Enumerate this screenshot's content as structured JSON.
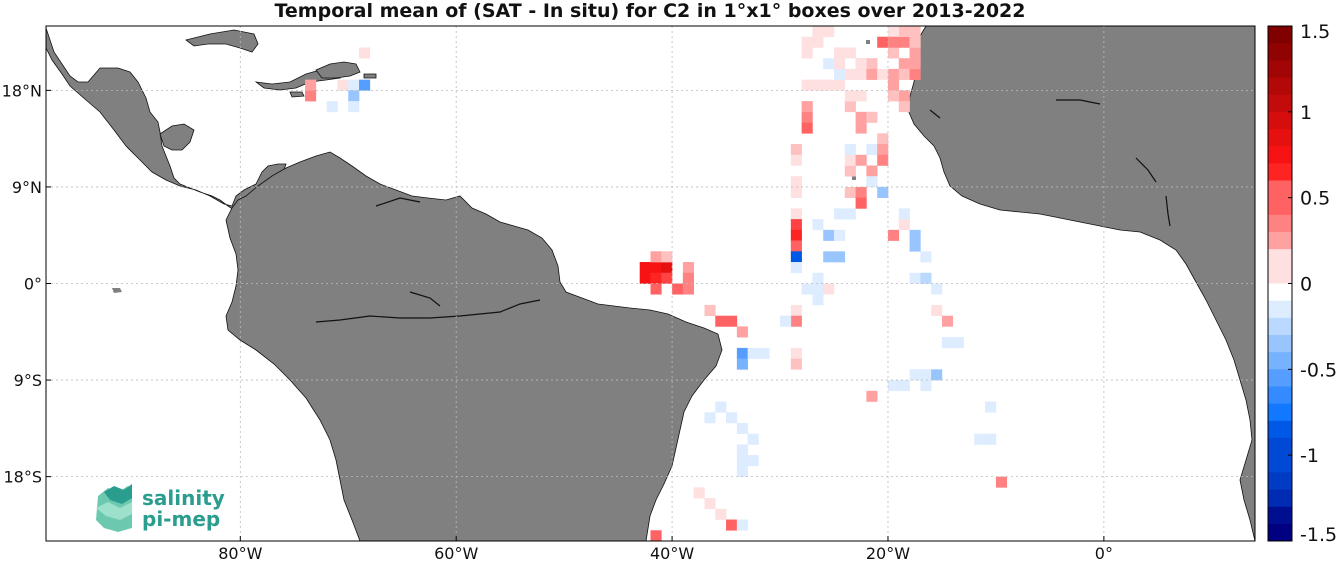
{
  "title": "Temporal mean of (SAT - In situ) for C2 in 1°x1° boxes over 2013-2022",
  "map": {
    "lon_range": [
      -98,
      14
    ],
    "lat_range": [
      -24,
      24
    ],
    "lon_ticks": [
      {
        "value": -80,
        "label": "80°W"
      },
      {
        "value": -60,
        "label": "60°W"
      },
      {
        "value": -40,
        "label": "40°W"
      },
      {
        "value": -20,
        "label": "20°W"
      },
      {
        "value": 0,
        "label": "0°"
      }
    ],
    "lat_ticks": [
      {
        "value": 18,
        "label": "18°N"
      },
      {
        "value": 9,
        "label": "9°N"
      },
      {
        "value": 0,
        "label": "0°"
      },
      {
        "value": -9,
        "label": "9°S"
      },
      {
        "value": -18,
        "label": "18°S"
      }
    ],
    "grid": true,
    "land_color": "#808080",
    "ocean_color": "#ffffff"
  },
  "colorbar": {
    "range": [
      -1.5,
      1.5
    ],
    "ticks": [
      {
        "value": 1.5,
        "label": "1.5"
      },
      {
        "value": 1,
        "label": "1"
      },
      {
        "value": 0.5,
        "label": "0.5"
      },
      {
        "value": 0,
        "label": "0"
      },
      {
        "value": -0.5,
        "label": "-0.5"
      },
      {
        "value": -1,
        "label": "-1"
      },
      {
        "value": -1.5,
        "label": "-1.5"
      }
    ],
    "placement": "right"
  },
  "logo": {
    "line1": "salinity",
    "line2": "pi-mep"
  },
  "chart_data": {
    "type": "heatmap",
    "cell_size_deg": 1,
    "value_range": [
      -1.5,
      1.5
    ],
    "cells": [
      [
        -74,
        18,
        0.25
      ],
      [
        -74,
        17,
        0.35
      ],
      [
        -71,
        18,
        0.1
      ],
      [
        -70,
        18,
        -0.15
      ],
      [
        -69,
        18,
        -0.5
      ],
      [
        -70,
        17,
        -0.35
      ],
      [
        -72,
        16,
        -0.1
      ],
      [
        -70,
        16,
        -0.1
      ],
      [
        -69,
        21,
        0.1
      ],
      [
        -43,
        1,
        0.8
      ],
      [
        -42,
        1,
        0.8
      ],
      [
        -41,
        1,
        0.9
      ],
      [
        -43,
        0,
        0.75
      ],
      [
        -42,
        0,
        0.7
      ],
      [
        -41,
        0,
        0.6
      ],
      [
        -42,
        -1,
        0.5
      ],
      [
        -40,
        -1,
        0.45
      ],
      [
        -42,
        2,
        0.25
      ],
      [
        -41,
        2,
        0.2
      ],
      [
        -39,
        1,
        0.3
      ],
      [
        -39,
        0,
        0.35
      ],
      [
        -39,
        -1,
        0.4
      ],
      [
        -37,
        -3,
        0.2
      ],
      [
        -36,
        -4,
        0.5
      ],
      [
        -35,
        -4,
        0.55
      ],
      [
        -34,
        -5,
        0.3
      ],
      [
        -34,
        -7,
        -0.5
      ],
      [
        -34,
        -8,
        -0.45
      ],
      [
        -33,
        -7,
        -0.15
      ],
      [
        -32,
        -7,
        -0.1
      ],
      [
        -36,
        -12,
        -0.15
      ],
      [
        -37,
        -13,
        -0.1
      ],
      [
        -35,
        -13,
        -0.1
      ],
      [
        -34,
        -14,
        -0.1
      ],
      [
        -33,
        -15,
        -0.15
      ],
      [
        -34,
        -16,
        -0.1
      ],
      [
        -33,
        -17,
        -0.15
      ],
      [
        -34,
        -17,
        -0.1
      ],
      [
        -34,
        -18,
        -0.1
      ],
      [
        -38,
        -20,
        0.1
      ],
      [
        -37,
        -21,
        0.1
      ],
      [
        -36,
        -22,
        0.1
      ],
      [
        -35,
        -23,
        0.45
      ],
      [
        -34,
        -23,
        -0.1
      ],
      [
        -42,
        -24,
        0.5
      ],
      [
        -29,
        12,
        0.2
      ],
      [
        -29,
        11,
        0.15
      ],
      [
        -29,
        9,
        0.15
      ],
      [
        -29,
        8,
        0.15
      ],
      [
        -29,
        6,
        0.1
      ],
      [
        -29,
        5,
        0.6
      ],
      [
        -29,
        4,
        0.65
      ],
      [
        -29,
        3,
        0.5
      ],
      [
        -29,
        2,
        -0.9
      ],
      [
        -29,
        1,
        -0.1
      ],
      [
        -29,
        -3,
        0.15
      ],
      [
        -29,
        -4,
        0.35
      ],
      [
        -30,
        -4,
        -0.15
      ],
      [
        -29,
        -7,
        0.15
      ],
      [
        -29,
        -8,
        0.2
      ],
      [
        -28,
        15,
        0.4
      ],
      [
        -28,
        14,
        0.55
      ],
      [
        -28,
        16,
        0.25
      ],
      [
        -28,
        18,
        0.1
      ],
      [
        -26,
        4,
        -0.3
      ],
      [
        -27,
        5,
        -0.1
      ],
      [
        -25,
        4,
        -0.15
      ],
      [
        -27,
        0,
        -0.1
      ],
      [
        -28,
        -1,
        -0.15
      ],
      [
        -27,
        -1,
        -0.1
      ],
      [
        -27,
        -2,
        -0.15
      ],
      [
        -26,
        -1,
        0.1
      ],
      [
        -26,
        2,
        -0.3
      ],
      [
        -25,
        2,
        -0.3
      ],
      [
        -25,
        6,
        -0.1
      ],
      [
        -24,
        6,
        -0.1
      ],
      [
        -24,
        8,
        0.2
      ],
      [
        -23,
        8,
        0.4
      ],
      [
        -23,
        7,
        0.5
      ],
      [
        -24,
        10,
        0.2
      ],
      [
        -24,
        11,
        0.15
      ],
      [
        -23,
        11,
        0.25
      ],
      [
        -22,
        10,
        0.25
      ],
      [
        -24,
        12,
        -0.15
      ],
      [
        -22,
        12,
        -0.15
      ],
      [
        -21,
        13,
        0.2
      ],
      [
        -21,
        12,
        0.3
      ],
      [
        -21,
        11,
        0.35
      ],
      [
        -22,
        9,
        -0.1
      ],
      [
        -21,
        8,
        -0.35
      ],
      [
        -20,
        4,
        0.35
      ],
      [
        -19,
        5,
        0.15
      ],
      [
        -19,
        6,
        -0.15
      ],
      [
        -18,
        4,
        -0.35
      ],
      [
        -18,
        3,
        -0.3
      ],
      [
        -17,
        2,
        -0.15
      ],
      [
        -18,
        0,
        -0.15
      ],
      [
        -17,
        0,
        -0.2
      ],
      [
        -16,
        -1,
        -0.15
      ],
      [
        -16,
        -3,
        0.1
      ],
      [
        -15,
        -4,
        0.25
      ],
      [
        -15,
        -6,
        -0.15
      ],
      [
        -14,
        -6,
        -0.15
      ],
      [
        -18,
        -9,
        -0.1
      ],
      [
        -19,
        -10,
        -0.1
      ],
      [
        -20,
        -10,
        -0.15
      ],
      [
        -17,
        -9,
        -0.15
      ],
      [
        -16,
        -9,
        -0.35
      ],
      [
        -17,
        -10,
        -0.1
      ],
      [
        -22,
        -11,
        0.25
      ],
      [
        -11,
        -12,
        -0.1
      ],
      [
        -12,
        -15,
        -0.15
      ],
      [
        -11,
        -15,
        -0.15
      ],
      [
        -10,
        -19,
        0.4
      ],
      [
        -24,
        16,
        0.2
      ],
      [
        -24,
        17,
        0.1
      ],
      [
        -23,
        17,
        0.1
      ],
      [
        -25,
        18,
        0.1
      ],
      [
        -26,
        18,
        0.1
      ],
      [
        -27,
        18,
        0.1
      ],
      [
        -24,
        19,
        0.15
      ],
      [
        -25,
        19,
        -0.1
      ],
      [
        -23,
        19,
        0.1
      ],
      [
        -23,
        15,
        0.3
      ],
      [
        -23,
        14,
        0.25
      ],
      [
        -23,
        20,
        0.2
      ],
      [
        -22,
        20,
        0.2
      ],
      [
        -22,
        19,
        0.25
      ],
      [
        -20,
        21,
        0.2
      ],
      [
        -19,
        22,
        0.35
      ],
      [
        -19,
        20,
        0.3
      ],
      [
        -20,
        19,
        0.25
      ],
      [
        -19,
        19,
        0.2
      ],
      [
        -18,
        19,
        0.35
      ],
      [
        -18,
        20,
        0.3
      ],
      [
        -18,
        21,
        0.25
      ],
      [
        -18,
        22,
        0.2
      ],
      [
        -19,
        23,
        0.2
      ],
      [
        -18,
        23,
        0.2
      ],
      [
        -20,
        23,
        0.15
      ],
      [
        -21,
        22,
        0.55
      ],
      [
        -20,
        22,
        0.35
      ],
      [
        -20,
        18,
        0.3
      ],
      [
        -19,
        17,
        0.25
      ],
      [
        -20,
        17,
        0.2
      ],
      [
        -19,
        16,
        0.2
      ],
      [
        -22,
        15,
        0.2
      ],
      [
        -23,
        20,
        0.15
      ],
      [
        -21,
        19,
        0.15
      ],
      [
        -24,
        21,
        0.1
      ],
      [
        -25,
        21,
        0.1
      ],
      [
        -25,
        20,
        0.1
      ],
      [
        -26,
        20,
        -0.15
      ],
      [
        -27,
        22,
        0.15
      ],
      [
        -28,
        22,
        0.1
      ],
      [
        -28,
        21,
        0.1
      ],
      [
        -27,
        23,
        0.1
      ],
      [
        -26,
        23,
        0.1
      ]
    ]
  }
}
